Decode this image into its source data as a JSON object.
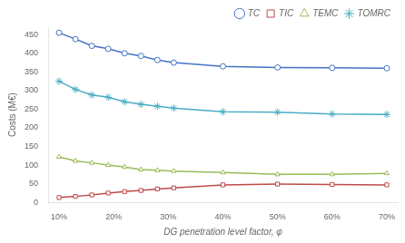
{
  "chart_data": {
    "type": "line",
    "x": [
      10,
      13,
      16,
      19,
      22,
      25,
      28,
      31,
      40,
      50,
      60,
      70
    ],
    "series": [
      {
        "name": "TC",
        "color": "#4472C4",
        "marker": "circle",
        "values": [
          455,
          438,
          420,
          412,
          400,
          393,
          382,
          375,
          365,
          362,
          361,
          360
        ]
      },
      {
        "name": "TIC",
        "color": "#BE4B48",
        "marker": "square",
        "values": [
          13,
          16,
          20,
          25,
          29,
          32,
          36,
          39,
          47,
          49,
          48,
          47
        ]
      },
      {
        "name": "TEMC",
        "color": "#9BBB59",
        "marker": "triangle",
        "values": [
          122,
          111,
          106,
          100,
          95,
          88,
          86,
          84,
          80,
          75,
          75,
          78
        ]
      },
      {
        "name": "TOMRC",
        "color": "#4AACC5",
        "marker": "star",
        "values": [
          325,
          303,
          288,
          282,
          270,
          263,
          258,
          253,
          243,
          242,
          237,
          236
        ]
      }
    ],
    "xlabel": "DG penetration level factor, φ",
    "ylabel": "Costs (M€)",
    "xlim": [
      8,
      72
    ],
    "xticks": [
      {
        "value": 10,
        "label": "10%"
      },
      {
        "value": 20,
        "label": "20%"
      },
      {
        "value": 30,
        "label": "30%"
      },
      {
        "value": 40,
        "label": "40%"
      },
      {
        "value": 50,
        "label": "50%"
      },
      {
        "value": 60,
        "label": "60%"
      },
      {
        "value": 70,
        "label": "70%"
      }
    ],
    "ylim": [
      0,
      470
    ],
    "yticks": [
      0,
      50,
      100,
      150,
      200,
      250,
      300,
      350,
      400,
      450
    ],
    "grid": false,
    "legend": "upper right"
  }
}
